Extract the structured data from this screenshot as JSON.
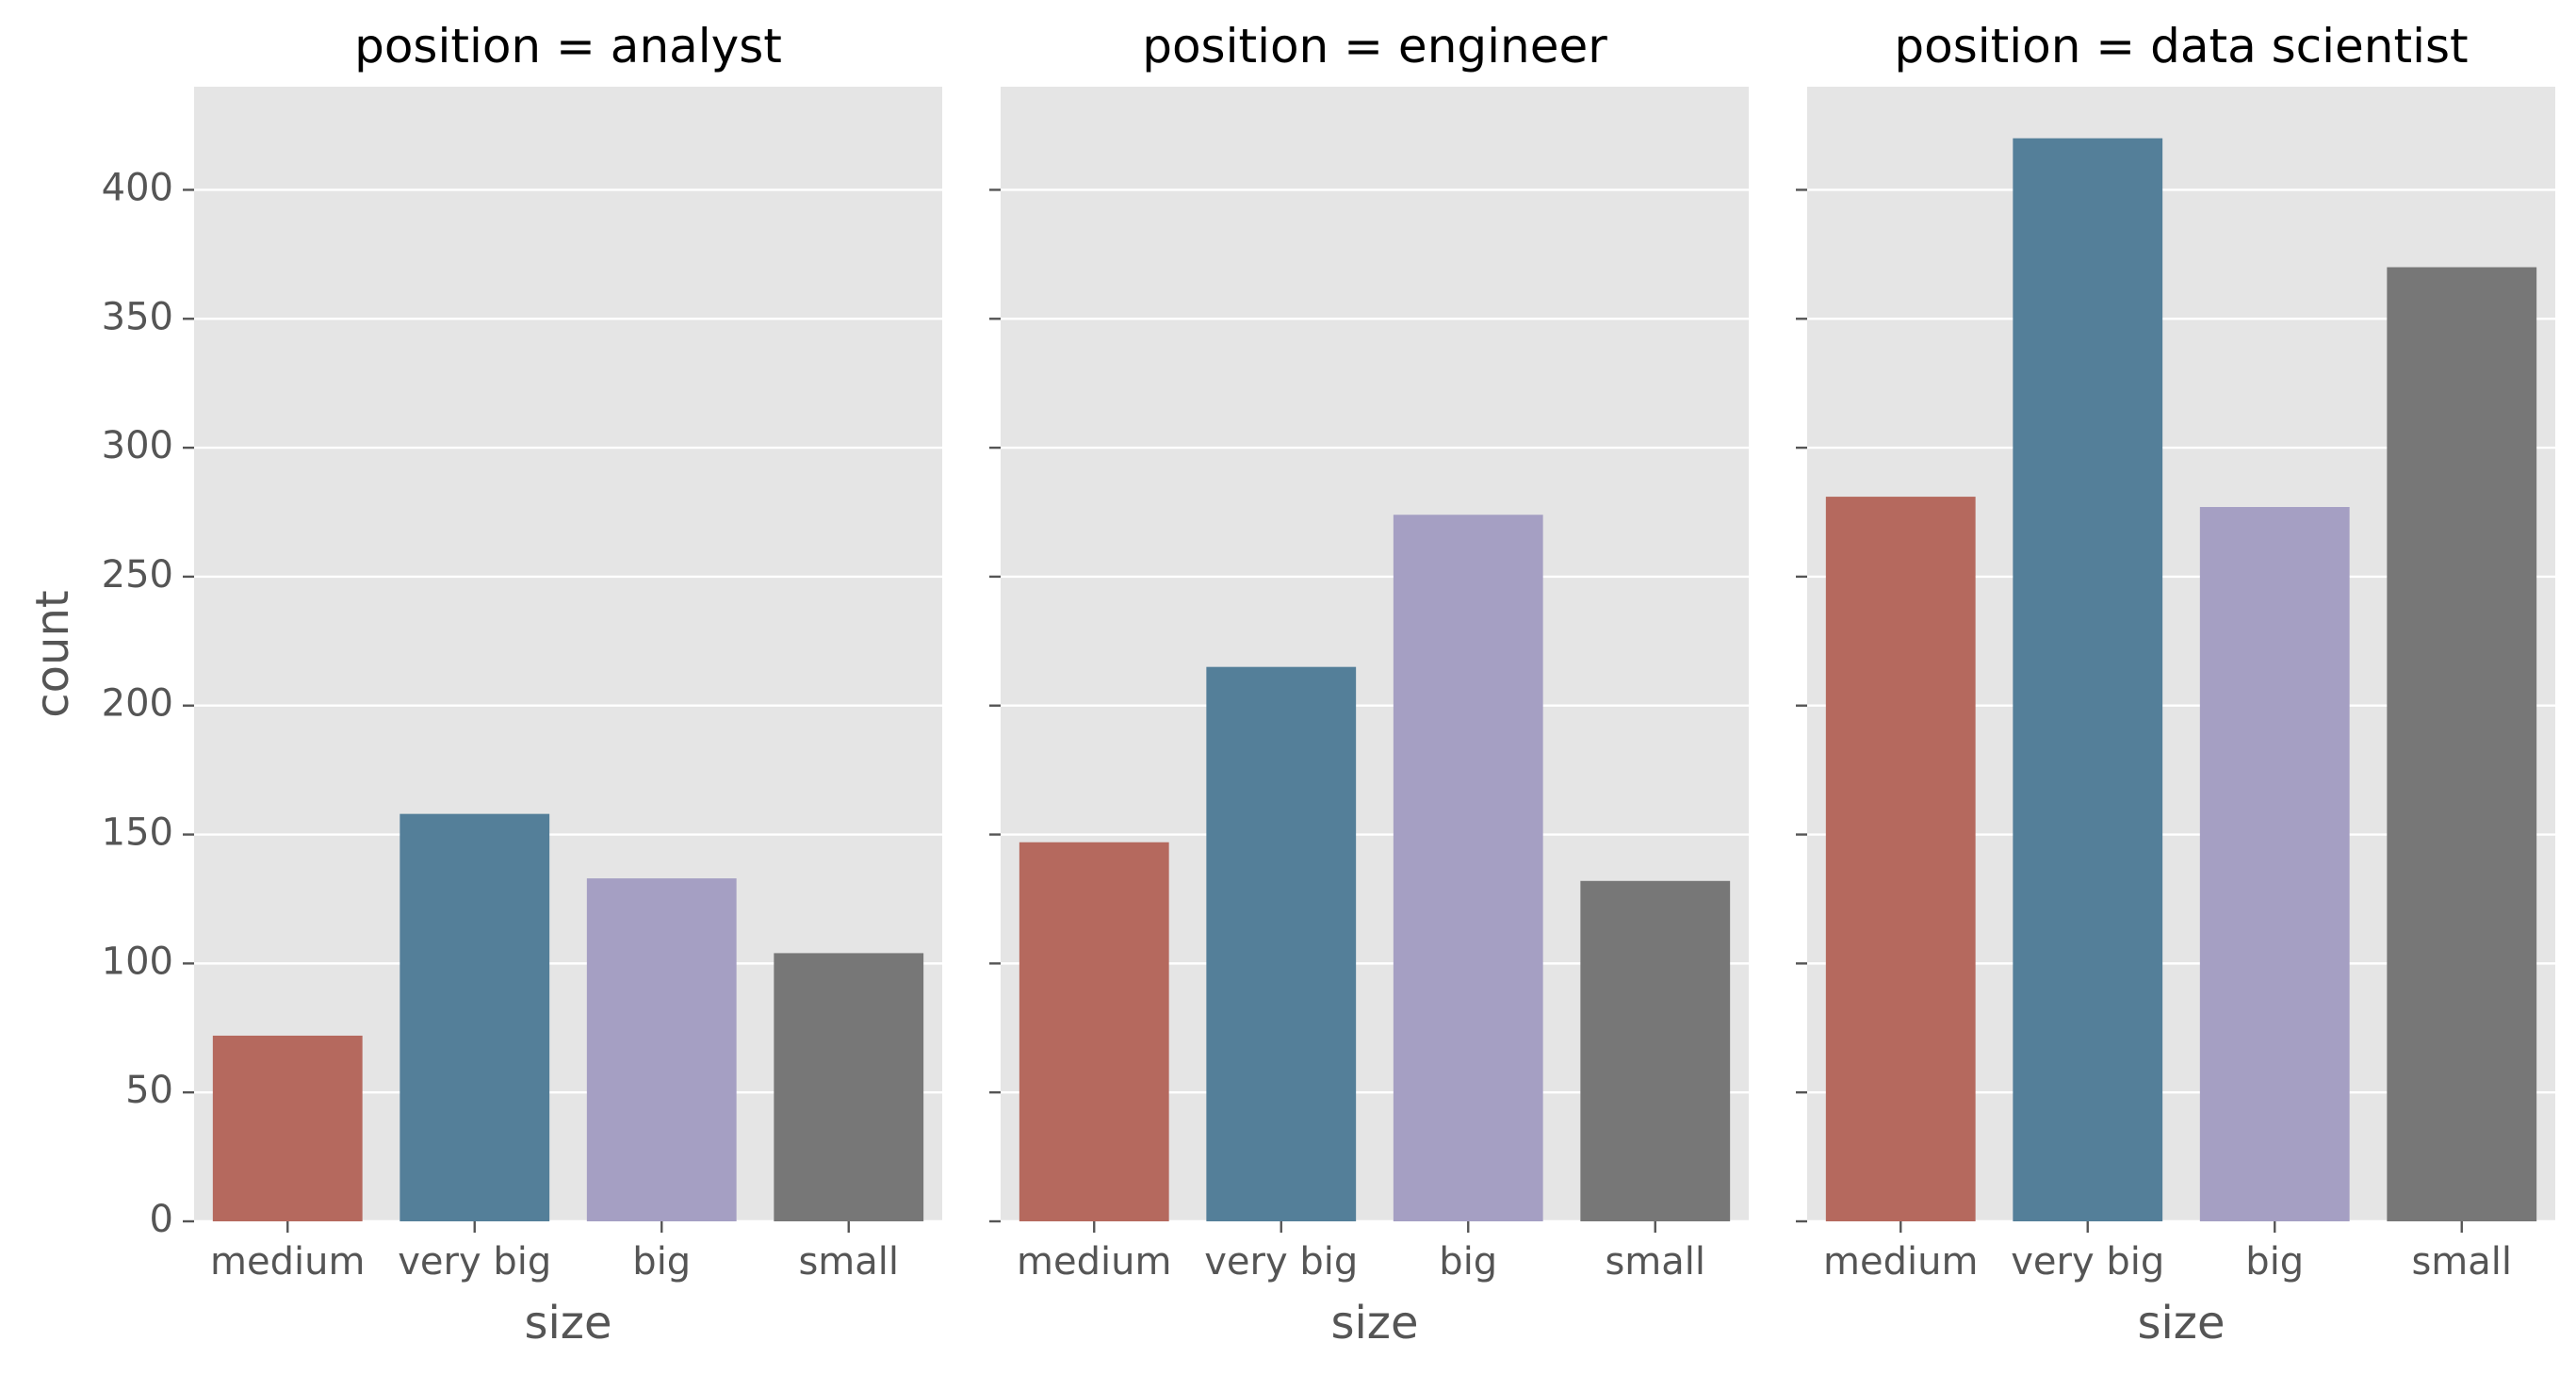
{
  "chart_data": {
    "type": "bar",
    "facet_variable": "position",
    "categories": [
      "medium",
      "very big",
      "big",
      "small"
    ],
    "colors": [
      "#b5695e",
      "#547f99",
      "#a59fc3",
      "#777777"
    ],
    "background_color": "#e5e5e5",
    "grid": true,
    "xlabel": "size",
    "ylabel": "count",
    "ylim": [
      0,
      440
    ],
    "yticks": [
      0,
      50,
      100,
      150,
      200,
      250,
      300,
      350,
      400
    ],
    "panels": [
      {
        "title": "position = analyst",
        "values": [
          72,
          158,
          133,
          104
        ]
      },
      {
        "title": "position = engineer",
        "values": [
          147,
          215,
          274,
          132
        ]
      },
      {
        "title": "position = data scientist",
        "values": [
          281,
          420,
          277,
          370
        ]
      }
    ]
  }
}
